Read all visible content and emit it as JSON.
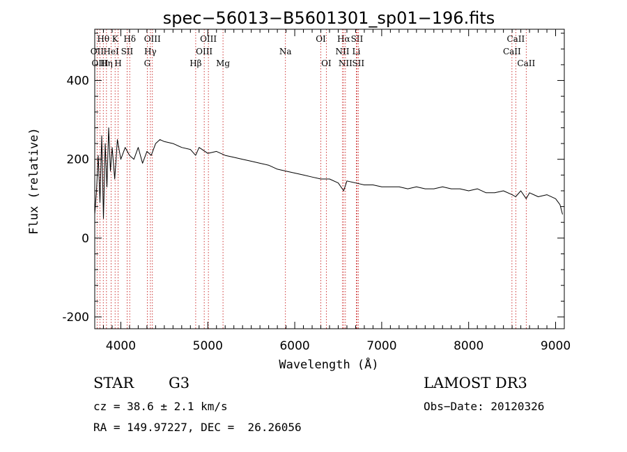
{
  "chart_data": {
    "type": "line",
    "title": "spec−56013−B5601301_sp01−196.fits",
    "xlabel": "Wavelength (Å)",
    "ylabel": "Flux (relative)",
    "xlim": [
      3700,
      9100
    ],
    "ylim": [
      -230,
      530
    ],
    "xticks": [
      4000,
      5000,
      6000,
      7000,
      8000,
      9000
    ],
    "yticks": [
      -200,
      0,
      200,
      400
    ],
    "series": [
      {
        "name": "flux",
        "x": [
          3700,
          3720,
          3740,
          3760,
          3780,
          3800,
          3820,
          3840,
          3860,
          3880,
          3900,
          3930,
          3960,
          4000,
          4050,
          4100,
          4150,
          4200,
          4250,
          4300,
          4350,
          4400,
          4450,
          4500,
          4600,
          4700,
          4800,
          4860,
          4900,
          5000,
          5100,
          5200,
          5300,
          5400,
          5500,
          5600,
          5700,
          5800,
          5900,
          6000,
          6100,
          6200,
          6300,
          6400,
          6500,
          6563,
          6600,
          6700,
          6800,
          6900,
          7000,
          7100,
          7200,
          7300,
          7400,
          7500,
          7600,
          7700,
          7800,
          7900,
          8000,
          8100,
          8200,
          8300,
          8400,
          8500,
          8540,
          8600,
          8662,
          8700,
          8800,
          8900,
          9000,
          9050,
          9080
        ],
        "y": [
          60,
          120,
          210,
          90,
          260,
          50,
          240,
          130,
          280,
          170,
          230,
          150,
          250,
          200,
          230,
          210,
          200,
          230,
          190,
          220,
          210,
          240,
          250,
          245,
          240,
          230,
          225,
          210,
          230,
          215,
          220,
          210,
          205,
          200,
          195,
          190,
          185,
          175,
          170,
          165,
          160,
          155,
          150,
          150,
          140,
          120,
          145,
          140,
          135,
          135,
          130,
          130,
          130,
          125,
          130,
          125,
          125,
          130,
          125,
          125,
          120,
          125,
          115,
          115,
          120,
          110,
          105,
          120,
          100,
          115,
          105,
          110,
          100,
          85,
          60
        ]
      }
    ],
    "spectral_lines": [
      {
        "name": "Hθ",
        "wavelength": 3798,
        "row": 0
      },
      {
        "name": "K",
        "wavelength": 3934,
        "row": 0
      },
      {
        "name": "Hδ",
        "wavelength": 4102,
        "row": 0
      },
      {
        "name": "OIII",
        "wavelength": 4363,
        "row": 0
      },
      {
        "name": "OIII",
        "wavelength": 5007,
        "row": 0
      },
      {
        "name": "OI",
        "wavelength": 6300,
        "row": 0
      },
      {
        "name": "Hα",
        "wavelength": 6563,
        "row": 0
      },
      {
        "name": "SII",
        "wavelength": 6716,
        "row": 0
      },
      {
        "name": "CaII",
        "wavelength": 8542,
        "row": 0
      },
      {
        "name": "OII",
        "wavelength": 3727,
        "row": 1
      },
      {
        "name": "HeI",
        "wavelength": 3889,
        "row": 1
      },
      {
        "name": "SII",
        "wavelength": 4072,
        "row": 1
      },
      {
        "name": "Hγ",
        "wavelength": 4340,
        "row": 1
      },
      {
        "name": "OIII",
        "wavelength": 4959,
        "row": 1
      },
      {
        "name": "Na",
        "wavelength": 5893,
        "row": 1
      },
      {
        "name": "NII",
        "wavelength": 6548,
        "row": 1
      },
      {
        "name": "Li",
        "wavelength": 6708,
        "row": 1
      },
      {
        "name": "CaII",
        "wavelength": 8498,
        "row": 1
      },
      {
        "name": "OIII",
        "wavelength": 3760,
        "row": 2
      },
      {
        "name": "Hη",
        "wavelength": 3835,
        "row": 2
      },
      {
        "name": "H",
        "wavelength": 3968,
        "row": 2
      },
      {
        "name": "G",
        "wavelength": 4304,
        "row": 2
      },
      {
        "name": "Hβ",
        "wavelength": 4861,
        "row": 2
      },
      {
        "name": "Mg",
        "wavelength": 5175,
        "row": 2
      },
      {
        "name": "OI",
        "wavelength": 6363,
        "row": 2
      },
      {
        "name": "NII",
        "wavelength": 6583,
        "row": 2
      },
      {
        "name": "SII",
        "wavelength": 6731,
        "row": 2
      },
      {
        "name": "CaII",
        "wavelength": 8662,
        "row": 2
      }
    ],
    "grid": false,
    "legend": "none"
  },
  "info": {
    "object_class": "STAR",
    "subclass": "G3",
    "survey": "LAMOST DR3",
    "redshift": "cz = 38.6 ± 2.1 km/s",
    "obs_date": "Obs−Date: 20120326",
    "coords": "RA = 149.97227, DEC =  26.26056"
  },
  "colors": {
    "line_marker": "#c00000",
    "spectrum": "#000000",
    "axes": "#000000"
  }
}
